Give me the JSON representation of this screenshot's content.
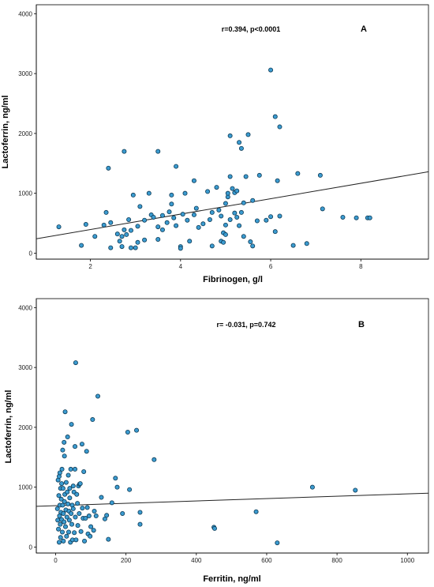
{
  "colors": {
    "point_fill": "#3b9bd0",
    "point_stroke": "#0d3a55",
    "line": "#222222",
    "frame": "#000000",
    "background": "#ffffff"
  },
  "chart_data": [
    {
      "panel": "A",
      "type": "scatter",
      "xlabel": "Fibrinogen, g/l",
      "ylabel": "Lactoferrin, ng/ml",
      "annotation": "r=0.394, p<0.0001",
      "xlim": [
        0.8,
        9.5
      ],
      "ylim": [
        -100,
        4150
      ],
      "xticks": [
        2,
        4,
        6,
        8
      ],
      "yticks": [
        0,
        1000,
        2000,
        3000,
        4000
      ],
      "grid": false,
      "regression_line": {
        "x": [
          0.8,
          9.5
        ],
        "y": [
          240,
          1360
        ]
      },
      "points": [
        [
          1.3,
          440
        ],
        [
          1.8,
          130
        ],
        [
          1.9,
          480
        ],
        [
          2.1,
          280
        ],
        [
          2.3,
          470
        ],
        [
          2.35,
          680
        ],
        [
          2.4,
          1420
        ],
        [
          2.45,
          510
        ],
        [
          2.45,
          90
        ],
        [
          2.6,
          320
        ],
        [
          2.65,
          200
        ],
        [
          2.7,
          110
        ],
        [
          2.7,
          280
        ],
        [
          2.75,
          390
        ],
        [
          2.75,
          1700
        ],
        [
          2.8,
          310
        ],
        [
          2.85,
          560
        ],
        [
          2.9,
          380
        ],
        [
          2.9,
          90
        ],
        [
          2.95,
          970
        ],
        [
          3.0,
          90
        ],
        [
          3.05,
          180
        ],
        [
          3.05,
          450
        ],
        [
          3.1,
          780
        ],
        [
          3.2,
          550
        ],
        [
          3.2,
          220
        ],
        [
          3.3,
          1000
        ],
        [
          3.35,
          640
        ],
        [
          3.4,
          600
        ],
        [
          3.5,
          440
        ],
        [
          3.5,
          230
        ],
        [
          3.5,
          1700
        ],
        [
          3.6,
          630
        ],
        [
          3.6,
          390
        ],
        [
          3.7,
          510
        ],
        [
          3.75,
          690
        ],
        [
          3.8,
          970
        ],
        [
          3.8,
          820
        ],
        [
          3.85,
          590
        ],
        [
          3.9,
          1450
        ],
        [
          3.9,
          460
        ],
        [
          4.0,
          110
        ],
        [
          4.0,
          80
        ],
        [
          4.05,
          650
        ],
        [
          4.1,
          1000
        ],
        [
          4.15,
          550
        ],
        [
          4.2,
          200
        ],
        [
          4.3,
          1210
        ],
        [
          4.3,
          640
        ],
        [
          4.35,
          750
        ],
        [
          4.4,
          430
        ],
        [
          4.5,
          490
        ],
        [
          4.6,
          1030
        ],
        [
          4.65,
          560
        ],
        [
          4.7,
          120
        ],
        [
          4.7,
          680
        ],
        [
          4.8,
          1100
        ],
        [
          4.85,
          720
        ],
        [
          4.9,
          620
        ],
        [
          4.9,
          200
        ],
        [
          4.95,
          180
        ],
        [
          4.95,
          340
        ],
        [
          5.0,
          470
        ],
        [
          5.0,
          830
        ],
        [
          5.0,
          310
        ],
        [
          5.05,
          940
        ],
        [
          5.05,
          1000
        ],
        [
          5.1,
          1280
        ],
        [
          5.1,
          560
        ],
        [
          5.1,
          1960
        ],
        [
          5.15,
          1080
        ],
        [
          5.2,
          670
        ],
        [
          5.2,
          1010
        ],
        [
          5.25,
          600
        ],
        [
          5.25,
          1040
        ],
        [
          5.3,
          1850
        ],
        [
          5.3,
          460
        ],
        [
          5.35,
          1750
        ],
        [
          5.35,
          680
        ],
        [
          5.4,
          840
        ],
        [
          5.4,
          280
        ],
        [
          5.45,
          1280
        ],
        [
          5.5,
          1980
        ],
        [
          5.55,
          190
        ],
        [
          5.6,
          120
        ],
        [
          5.6,
          880
        ],
        [
          5.7,
          540
        ],
        [
          5.75,
          1300
        ],
        [
          5.9,
          550
        ],
        [
          6.0,
          610
        ],
        [
          6.0,
          3060
        ],
        [
          6.1,
          360
        ],
        [
          6.1,
          2280
        ],
        [
          6.15,
          1210
        ],
        [
          6.2,
          2110
        ],
        [
          6.2,
          620
        ],
        [
          6.5,
          130
        ],
        [
          6.6,
          1330
        ],
        [
          6.8,
          160
        ],
        [
          7.1,
          1300
        ],
        [
          7.15,
          740
        ],
        [
          7.6,
          600
        ],
        [
          7.9,
          590
        ],
        [
          8.15,
          590
        ],
        [
          8.2,
          590
        ]
      ]
    },
    {
      "panel": "B",
      "type": "scatter",
      "xlabel": "Ferritin, ng/ml",
      "ylabel": "Lactoferrin, ng/ml",
      "annotation": "r= -0.031, p=0.742",
      "xlim": [
        -55,
        1060
      ],
      "ylim": [
        -100,
        4150
      ],
      "xticks": [
        0,
        200,
        400,
        600,
        800,
        1000
      ],
      "yticks": [
        0,
        1000,
        2000,
        3000,
        4000
      ],
      "grid": false,
      "regression_line": {
        "x": [
          -55,
          1060
        ],
        "y": [
          680,
          900
        ]
      },
      "points": [
        [
          5,
          640
        ],
        [
          6,
          450
        ],
        [
          7,
          1120
        ],
        [
          8,
          300
        ],
        [
          9,
          860
        ],
        [
          10,
          1180
        ],
        [
          10,
          80
        ],
        [
          11,
          520
        ],
        [
          12,
          1240
        ],
        [
          12,
          700
        ],
        [
          13,
          380
        ],
        [
          14,
          980
        ],
        [
          14,
          160
        ],
        [
          15,
          580
        ],
        [
          16,
          800
        ],
        [
          17,
          1060
        ],
        [
          17,
          460
        ],
        [
          18,
          1300
        ],
        [
          19,
          250
        ],
        [
          20,
          700
        ],
        [
          20,
          1620
        ],
        [
          21,
          980
        ],
        [
          22,
          560
        ],
        [
          22,
          100
        ],
        [
          24,
          420
        ],
        [
          24,
          1750
        ],
        [
          25,
          1520
        ],
        [
          25,
          760
        ],
        [
          26,
          880
        ],
        [
          27,
          2260
        ],
        [
          28,
          340
        ],
        [
          29,
          620
        ],
        [
          30,
          1080
        ],
        [
          31,
          180
        ],
        [
          32,
          500
        ],
        [
          33,
          920
        ],
        [
          34,
          1840
        ],
        [
          35,
          720
        ],
        [
          36,
          1200
        ],
        [
          37,
          250
        ],
        [
          38,
          600
        ],
        [
          39,
          450
        ],
        [
          40,
          980
        ],
        [
          40,
          820
        ],
        [
          42,
          80
        ],
        [
          43,
          1300
        ],
        [
          44,
          560
        ],
        [
          45,
          2050
        ],
        [
          46,
          380
        ],
        [
          47,
          700
        ],
        [
          48,
          120
        ],
        [
          50,
          1020
        ],
        [
          50,
          640
        ],
        [
          52,
          920
        ],
        [
          53,
          240
        ],
        [
          55,
          1300
        ],
        [
          55,
          1680
        ],
        [
          56,
          500
        ],
        [
          57,
          3080
        ],
        [
          58,
          120
        ],
        [
          60,
          880
        ],
        [
          62,
          730
        ],
        [
          63,
          360
        ],
        [
          65,
          1020
        ],
        [
          67,
          560
        ],
        [
          68,
          1050
        ],
        [
          70,
          1060
        ],
        [
          72,
          260
        ],
        [
          75,
          1720
        ],
        [
          76,
          650
        ],
        [
          78,
          480
        ],
        [
          80,
          1260
        ],
        [
          82,
          100
        ],
        [
          85,
          480
        ],
        [
          88,
          1600
        ],
        [
          90,
          660
        ],
        [
          92,
          220
        ],
        [
          95,
          520
        ],
        [
          98,
          180
        ],
        [
          100,
          340
        ],
        [
          105,
          2130
        ],
        [
          108,
          280
        ],
        [
          110,
          600
        ],
        [
          115,
          520
        ],
        [
          120,
          2520
        ],
        [
          130,
          830
        ],
        [
          140,
          470
        ],
        [
          145,
          530
        ],
        [
          150,
          130
        ],
        [
          160,
          740
        ],
        [
          170,
          1150
        ],
        [
          175,
          1000
        ],
        [
          190,
          560
        ],
        [
          205,
          1920
        ],
        [
          210,
          960
        ],
        [
          230,
          1950
        ],
        [
          240,
          580
        ],
        [
          240,
          380
        ],
        [
          280,
          1460
        ],
        [
          450,
          330
        ],
        [
          452,
          310
        ],
        [
          570,
          590
        ],
        [
          630,
          70
        ],
        [
          730,
          1000
        ],
        [
          852,
          950
        ]
      ]
    }
  ]
}
